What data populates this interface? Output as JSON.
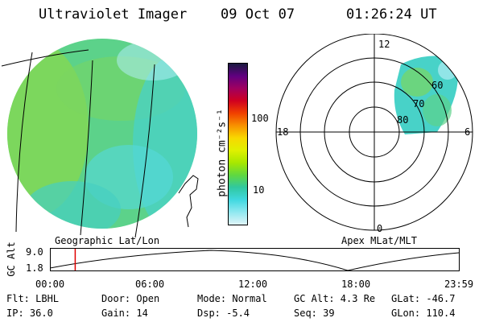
{
  "header": {
    "title": "Ultraviolet Imager",
    "date": "09 Oct 07",
    "time": "01:26:24 UT"
  },
  "colorbar": {
    "label": "photon cm⁻²s⁻¹",
    "ticks": [
      "100",
      "10"
    ],
    "scale": "log",
    "colors": [
      "#1a1a40",
      "#600080",
      "#a00060",
      "#d00020",
      "#f04000",
      "#f89000",
      "#f8d800",
      "#e0f000",
      "#a8e800",
      "#60d840",
      "#30c8a0",
      "#40d8e0",
      "#90e8f0",
      "#e0f4f8"
    ]
  },
  "geo_panel": {
    "label": "Geographic Lat/Lon",
    "disk_color": "#5cd28a"
  },
  "polar_panel": {
    "label": "Apex MLat/MLT",
    "mlt_labels": {
      "top": "12",
      "left": "18",
      "right": "6",
      "bottom": "0"
    },
    "lat_labels": [
      "60",
      "70",
      "80"
    ]
  },
  "altitude_plot": {
    "ylabel": "GC Alt",
    "yticks": [
      "9.0",
      "1.8"
    ],
    "xticks": [
      "00:00",
      "06:00",
      "12:00",
      "18:00",
      "23:59"
    ],
    "marker_time": "01:26:24"
  },
  "info": {
    "flt": "Flt: LBHL",
    "ip": "IP: 36.0",
    "door": "Door: Open",
    "gain": "Gain: 14",
    "mode": "Mode: Normal",
    "dsp": "Dsp:  -5.4",
    "gcalt": "GC Alt: 4.3 Re",
    "seq": "Seq: 39",
    "glat": "GLat: -46.7",
    "glon": "GLon: 110.4"
  }
}
